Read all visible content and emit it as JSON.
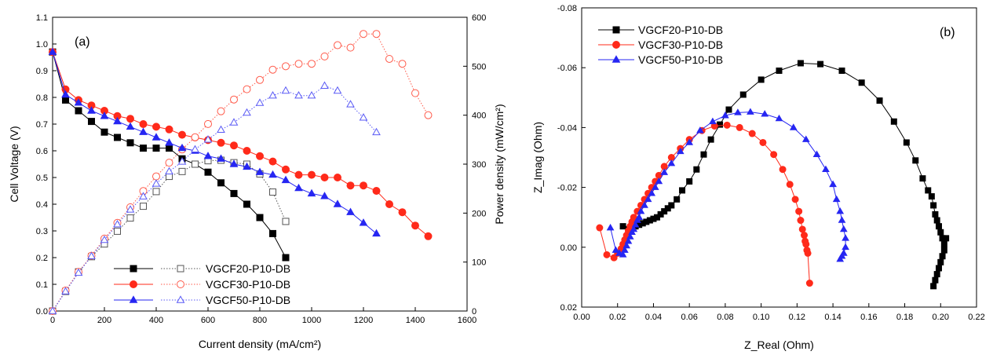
{
  "chart_data": [
    {
      "type": "line",
      "panel_label": "(a)",
      "xlabel": "Current density (mA/cm²)",
      "ylabel": "Cell Voltage (V)",
      "ylabel_right": "Power density (mW/cm²)",
      "xlim": [
        0,
        1600
      ],
      "ylim": [
        0,
        1.1
      ],
      "ylim_right": [
        0,
        600
      ],
      "x_ticks": [
        "0",
        "200",
        "400",
        "600",
        "800",
        "1000",
        "1200",
        "1400",
        "1600"
      ],
      "y_ticks": [
        "0.0",
        "0.1",
        "0.2",
        "0.3",
        "0.4",
        "0.5",
        "0.6",
        "0.7",
        "0.8",
        "0.9",
        "1.0",
        "1.1"
      ],
      "y_ticks_right": [
        "0",
        "100",
        "200",
        "300",
        "400",
        "500",
        "600"
      ],
      "legend_position": "bottom-center",
      "series": [
        {
          "name": "VGCF20-P10-DB",
          "axis": "left",
          "style": "solid",
          "marker": "square",
          "filled": true,
          "color": "#000000",
          "x": [
            0,
            50,
            100,
            150,
            200,
            250,
            300,
            350,
            400,
            450,
            500,
            550,
            600,
            650,
            700,
            750,
            800,
            850,
            900
          ],
          "y": [
            0.97,
            0.79,
            0.75,
            0.71,
            0.67,
            0.65,
            0.63,
            0.61,
            0.61,
            0.61,
            0.57,
            0.55,
            0.52,
            0.48,
            0.44,
            0.4,
            0.35,
            0.29,
            0.2
          ]
        },
        {
          "name": "VGCF20-P10-DB",
          "axis": "right",
          "style": "dotted",
          "marker": "square",
          "filled": false,
          "color": "#555555",
          "x": [
            0,
            50,
            100,
            150,
            200,
            250,
            300,
            350,
            400,
            450,
            500,
            550,
            600,
            650,
            700,
            750,
            800,
            850,
            900
          ],
          "y": [
            0,
            40,
            80,
            111,
            137,
            163,
            190,
            214,
            244,
            275,
            285,
            300,
            307,
            308,
            303,
            300,
            280,
            243,
            183
          ]
        },
        {
          "name": "VGCF30-P10-DB",
          "axis": "left",
          "style": "solid",
          "marker": "circle",
          "filled": true,
          "color": "#ff2a1a",
          "x": [
            0,
            50,
            100,
            150,
            200,
            250,
            300,
            350,
            400,
            450,
            500,
            550,
            600,
            650,
            700,
            750,
            800,
            850,
            900,
            950,
            1000,
            1050,
            1100,
            1150,
            1200,
            1250,
            1300,
            1350,
            1400,
            1450
          ],
          "y": [
            0.97,
            0.83,
            0.79,
            0.77,
            0.75,
            0.73,
            0.72,
            0.7,
            0.69,
            0.68,
            0.66,
            0.65,
            0.64,
            0.63,
            0.62,
            0.6,
            0.58,
            0.56,
            0.53,
            0.51,
            0.51,
            0.5,
            0.5,
            0.47,
            0.47,
            0.45,
            0.4,
            0.37,
            0.32,
            0.28
          ]
        },
        {
          "name": "VGCF30-P10-DB",
          "axis": "right",
          "style": "dotted",
          "marker": "circle",
          "filled": false,
          "color": "#ff5a4a",
          "x": [
            0,
            50,
            100,
            150,
            200,
            250,
            300,
            350,
            400,
            450,
            500,
            550,
            600,
            650,
            700,
            750,
            800,
            850,
            900,
            950,
            1000,
            1050,
            1100,
            1150,
            1200,
            1250,
            1300,
            1350,
            1400,
            1450
          ],
          "y": [
            0,
            42,
            80,
            113,
            148,
            180,
            212,
            245,
            275,
            303,
            330,
            355,
            382,
            408,
            432,
            453,
            472,
            493,
            500,
            505,
            505,
            520,
            543,
            538,
            566,
            566,
            515,
            505,
            445,
            400
          ]
        },
        {
          "name": "VGCF50-P10-DB",
          "axis": "left",
          "style": "solid",
          "marker": "triangle",
          "filled": true,
          "color": "#2626f2",
          "x": [
            0,
            50,
            100,
            150,
            200,
            250,
            300,
            350,
            400,
            450,
            500,
            550,
            600,
            650,
            700,
            750,
            800,
            850,
            900,
            950,
            1000,
            1050,
            1100,
            1150,
            1200,
            1250
          ],
          "y": [
            0.97,
            0.81,
            0.78,
            0.75,
            0.73,
            0.71,
            0.69,
            0.67,
            0.65,
            0.63,
            0.61,
            0.6,
            0.58,
            0.57,
            0.55,
            0.54,
            0.52,
            0.51,
            0.49,
            0.46,
            0.44,
            0.43,
            0.4,
            0.37,
            0.33,
            0.29
          ]
        },
        {
          "name": "VGCF50-P10-DB",
          "axis": "right",
          "style": "dotted",
          "marker": "triangle",
          "filled": false,
          "color": "#5a5af5",
          "x": [
            0,
            50,
            100,
            150,
            200,
            250,
            300,
            350,
            400,
            450,
            500,
            550,
            600,
            650,
            700,
            750,
            800,
            850,
            900,
            950,
            1000,
            1050,
            1100,
            1150,
            1200,
            1250
          ],
          "y": [
            0,
            40,
            78,
            112,
            145,
            177,
            207,
            234,
            260,
            285,
            305,
            330,
            350,
            370,
            385,
            405,
            425,
            440,
            450,
            440,
            440,
            460,
            450,
            422,
            395,
            365
          ]
        }
      ]
    },
    {
      "type": "scatter",
      "panel_label": "(b)",
      "xlabel": "Z_Real (Ohm)",
      "ylabel": "Z_Imag (Ohm)",
      "xlim": [
        0,
        0.22
      ],
      "ylim": [
        0.02,
        -0.08
      ],
      "y_axis_inverted": true,
      "x_ticks": [
        "0.00",
        "0.02",
        "0.04",
        "0.06",
        "0.08",
        "0.10",
        "0.12",
        "0.14",
        "0.16",
        "0.18",
        "0.20",
        "0.22"
      ],
      "y_ticks": [
        "-0.08",
        "-0.06",
        "-0.04",
        "-0.02",
        "0.00",
        "0.02"
      ],
      "legend_position": "top-left",
      "series": [
        {
          "name": "VGCF20-P10-DB",
          "marker": "square",
          "color": "#000000",
          "x": [
            0.023,
            0.026,
            0.028,
            0.03,
            0.032,
            0.034,
            0.036,
            0.038,
            0.04,
            0.042,
            0.044,
            0.046,
            0.048,
            0.05,
            0.053,
            0.056,
            0.06,
            0.064,
            0.068,
            0.072,
            0.077,
            0.082,
            0.09,
            0.1,
            0.11,
            0.122,
            0.133,
            0.145,
            0.156,
            0.166,
            0.174,
            0.181,
            0.186,
            0.19,
            0.193,
            0.195,
            0.196,
            0.197,
            0.198,
            0.199,
            0.2,
            0.201,
            0.202,
            0.203,
            0.202,
            0.201,
            0.2,
            0.199,
            0.198,
            0.197,
            0.196
          ],
          "y": [
            -0.007,
            -0.006,
            -0.0065,
            -0.007,
            -0.0075,
            -0.008,
            -0.0085,
            -0.009,
            -0.0095,
            -0.01,
            -0.011,
            -0.012,
            -0.013,
            -0.014,
            -0.016,
            -0.019,
            -0.022,
            -0.026,
            -0.031,
            -0.036,
            -0.041,
            -0.046,
            -0.051,
            -0.056,
            -0.059,
            -0.0615,
            -0.0612,
            -0.059,
            -0.055,
            -0.049,
            -0.042,
            -0.035,
            -0.029,
            -0.023,
            -0.019,
            -0.017,
            -0.014,
            -0.011,
            -0.009,
            -0.007,
            -0.005,
            -0.003,
            -0.001,
            -0.003,
            0.001,
            0.003,
            0.005,
            0.007,
            0.009,
            0.011,
            0.013
          ]
        },
        {
          "name": "VGCF30-P10-DB",
          "marker": "circle",
          "color": "#ff2a1a",
          "x": [
            0.01,
            0.014,
            0.018,
            0.02,
            0.022,
            0.023,
            0.024,
            0.025,
            0.026,
            0.027,
            0.028,
            0.029,
            0.031,
            0.033,
            0.035,
            0.037,
            0.039,
            0.041,
            0.043,
            0.046,
            0.05,
            0.055,
            0.06,
            0.067,
            0.074,
            0.081,
            0.088,
            0.095,
            0.101,
            0.107,
            0.112,
            0.116,
            0.119,
            0.121,
            0.122,
            0.123,
            0.124,
            0.1245,
            0.125,
            0.1255,
            0.126,
            0.127
          ],
          "y": [
            -0.0065,
            0.0025,
            0.0035,
            0.002,
            0.0005,
            -0.001,
            -0.0025,
            -0.004,
            -0.0055,
            -0.007,
            -0.0085,
            -0.01,
            -0.012,
            -0.014,
            -0.016,
            -0.018,
            -0.02,
            -0.022,
            -0.024,
            -0.027,
            -0.03,
            -0.033,
            -0.036,
            -0.039,
            -0.0405,
            -0.0408,
            -0.04,
            -0.038,
            -0.035,
            -0.031,
            -0.026,
            -0.021,
            -0.016,
            -0.012,
            -0.009,
            -0.006,
            -0.004,
            -0.002,
            -0.001,
            0.001,
            0.002,
            0.012
          ]
        },
        {
          "name": "VGCF50-P10-DB",
          "marker": "triangle",
          "color": "#2626f2",
          "x": [
            0.016,
            0.019,
            0.021,
            0.023,
            0.024,
            0.025,
            0.026,
            0.027,
            0.028,
            0.029,
            0.03,
            0.031,
            0.032,
            0.033,
            0.035,
            0.037,
            0.039,
            0.041,
            0.043,
            0.046,
            0.05,
            0.055,
            0.06,
            0.066,
            0.073,
            0.08,
            0.087,
            0.094,
            0.102,
            0.11,
            0.118,
            0.125,
            0.131,
            0.136,
            0.14,
            0.142,
            0.144,
            0.145,
            0.146,
            0.147,
            0.147,
            0.146,
            0.145,
            0.144
          ],
          "y": [
            -0.0065,
            0.001,
            0.002,
            0.0025,
            0.001,
            -0.0005,
            -0.002,
            -0.0035,
            -0.005,
            -0.006,
            -0.0075,
            -0.009,
            -0.01,
            -0.012,
            -0.014,
            -0.016,
            -0.018,
            -0.02,
            -0.022,
            -0.025,
            -0.028,
            -0.032,
            -0.035,
            -0.039,
            -0.042,
            -0.044,
            -0.045,
            -0.0452,
            -0.0445,
            -0.043,
            -0.04,
            -0.036,
            -0.031,
            -0.026,
            -0.021,
            -0.016,
            -0.012,
            -0.009,
            -0.006,
            -0.003,
            0.0,
            0.002,
            0.003,
            0.004
          ]
        }
      ]
    }
  ]
}
